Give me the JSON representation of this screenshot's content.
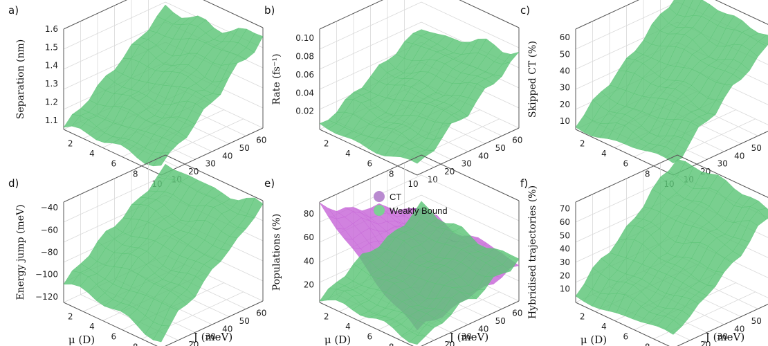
{
  "colors": {
    "weakly_bound": "#5cc476",
    "weakly_bound_dark": "#2f9a48",
    "ct": "#c766d8",
    "ct_dark": "#9a3fb0",
    "legend_ct": "#b98ad0",
    "legend_wb": "#7ccf94",
    "frame": "#555555",
    "grid": "#d9d9d9"
  },
  "axes": {
    "mu_label": "μ (D)",
    "J_label": "J (meV)",
    "mu_ticks": [
      "2",
      "4",
      "6",
      "8",
      "10"
    ],
    "J_ticks": [
      "10",
      "20",
      "30",
      "40",
      "50",
      "60"
    ]
  },
  "chart_data": [
    {
      "panel": "a)",
      "type": "surface",
      "zlabel": "Separation (nm)",
      "zticks": [
        "1.1",
        "1.2",
        "1.3",
        "1.4",
        "1.5",
        "1.6"
      ],
      "zlim": [
        1.05,
        1.6
      ],
      "mu": [
        1,
        10
      ],
      "J": [
        5,
        65
      ],
      "surfaces": [
        {
          "name": "Weakly Bound",
          "corner_values": {
            "mu_low_J_low": 1.05,
            "mu_high_J_low": 1.1,
            "mu_low_J_high": 1.45,
            "mu_high_J_high": 1.55
          }
        }
      ]
    },
    {
      "panel": "b)",
      "type": "surface",
      "zlabel": "Rate (fs⁻¹)",
      "zticks": [
        "0.02",
        "0.04",
        "0.06",
        "0.08",
        "0.10"
      ],
      "zlim": [
        0,
        0.11
      ],
      "mu": [
        1,
        10
      ],
      "J": [
        5,
        65
      ],
      "surfaces": [
        {
          "name": "Weakly Bound",
          "corner_values": {
            "mu_low_J_low": 0.002,
            "mu_high_J_low": 0.01,
            "mu_low_J_high": 0.06,
            "mu_high_J_high": 0.08
          }
        }
      ]
    },
    {
      "panel": "c)",
      "type": "surface",
      "zlabel": "Skipped CT (%)",
      "zticks": [
        "10",
        "20",
        "30",
        "40",
        "50",
        "60"
      ],
      "zlim": [
        5,
        65
      ],
      "mu": [
        1,
        10
      ],
      "J": [
        5,
        65
      ],
      "surfaces": [
        {
          "name": "Weakly Bound",
          "corner_values": {
            "mu_low_J_low": 8,
            "mu_high_J_low": 12,
            "mu_low_J_high": 58,
            "mu_high_J_high": 60
          }
        }
      ]
    },
    {
      "panel": "d)",
      "type": "surface",
      "zlabel": "Energy jump (meV)",
      "zticks": [
        "−120",
        "−100",
        "−80",
        "−60",
        "−40"
      ],
      "zlim": [
        -125,
        -35
      ],
      "mu": [
        1,
        10
      ],
      "J": [
        5,
        65
      ],
      "surfaces": [
        {
          "name": "Weakly Bound",
          "corner_values": {
            "mu_low_J_low": -105,
            "mu_high_J_low": -115,
            "mu_low_J_high": -45,
            "mu_high_J_high": -40
          }
        }
      ]
    },
    {
      "panel": "e)",
      "type": "surface",
      "zlabel": "Populations (%)",
      "zticks": [
        "20",
        "40",
        "60",
        "80"
      ],
      "zlim": [
        5,
        90
      ],
      "mu": [
        1,
        10
      ],
      "J": [
        5,
        65
      ],
      "legend": [
        "CT",
        "Weakly Bound"
      ],
      "surfaces": [
        {
          "name": "CT",
          "corner_values": {
            "mu_low_J_low": 87,
            "mu_high_J_low": 20,
            "mu_low_J_high": 45,
            "mu_high_J_high": 35
          }
        },
        {
          "name": "Weakly Bound",
          "corner_values": {
            "mu_low_J_low": 8,
            "mu_high_J_low": 10,
            "mu_low_J_high": 45,
            "mu_high_J_high": 40
          }
        }
      ]
    },
    {
      "panel": "f)",
      "type": "surface",
      "zlabel": "Hybridised trajectories (%)",
      "zticks": [
        "10",
        "20",
        "30",
        "40",
        "50",
        "60",
        "70"
      ],
      "zlim": [
        0,
        75
      ],
      "mu": [
        1,
        10
      ],
      "J": [
        5,
        65
      ],
      "surfaces": [
        {
          "name": "Weakly Bound",
          "corner_values": {
            "mu_low_J_low": 5,
            "mu_high_J_low": 8,
            "mu_low_J_high": 72,
            "mu_high_J_high": 68
          }
        }
      ]
    }
  ]
}
